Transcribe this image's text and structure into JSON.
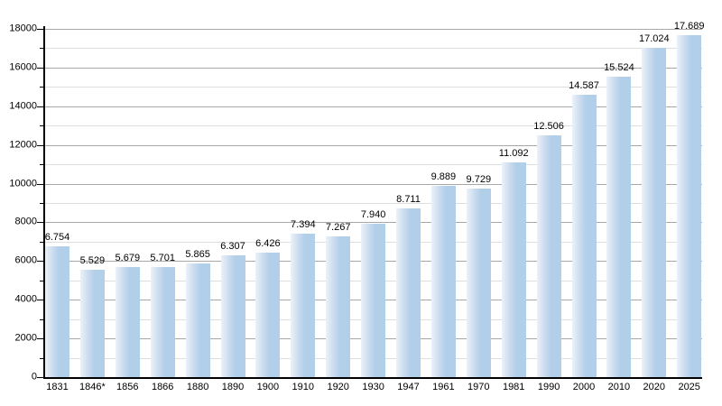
{
  "chart_data": {
    "type": "bar",
    "title": "",
    "xlabel": "",
    "ylabel": "",
    "categories": [
      "1831",
      "1846*",
      "1856",
      "1866",
      "1880",
      "1890",
      "1900",
      "1910",
      "1920",
      "1930",
      "1947",
      "1961",
      "1970",
      "1981",
      "1990",
      "2000",
      "2010",
      "2020",
      "2025"
    ],
    "values": [
      6754,
      5529,
      5679,
      5701,
      5865,
      6307,
      6426,
      7394,
      7267,
      7940,
      8711,
      9889,
      9729,
      11092,
      12506,
      14587,
      15524,
      17024,
      17689
    ],
    "value_labels": [
      "6.754",
      "5.529",
      "5.679",
      "5.701",
      "5.865",
      "6.307",
      "6.426",
      "7.394",
      "7.267",
      "7.940",
      "8.711",
      "9.889",
      "9.729",
      "11.092",
      "12.506",
      "14.587",
      "15.524",
      "17.024",
      "17.689"
    ],
    "y_axis": {
      "min": 0,
      "max": 18000,
      "major_step": 2000,
      "minor_step": 1000,
      "tick_labels": [
        "0",
        "2000",
        "4000",
        "6000",
        "8000",
        "10000",
        "12000",
        "14000",
        "16000",
        "18000"
      ]
    },
    "grid": "on",
    "legend": "none",
    "colors": {
      "bar_fill": "#b2cfe9",
      "bar_fill_light": "#ebf2f9",
      "grid_major": "#a8a8a8",
      "grid_minor": "#dedede",
      "axis": "#000000",
      "text": "#000000",
      "background": "#ffffff"
    }
  }
}
